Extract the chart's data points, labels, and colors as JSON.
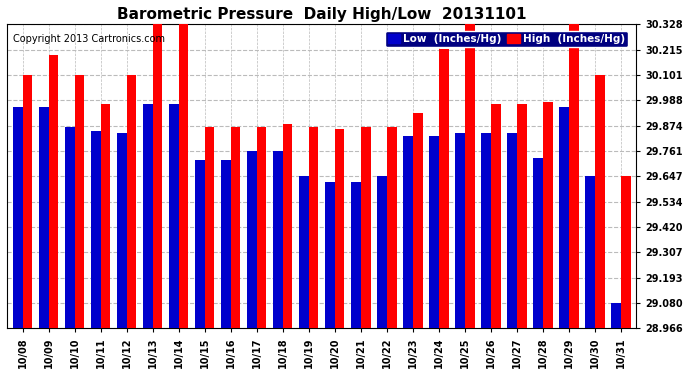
{
  "title": "Barometric Pressure  Daily High/Low  20131101",
  "copyright": "Copyright 2013 Cartronics.com",
  "legend_low": "Low  (Inches/Hg)",
  "legend_high": "High  (Inches/Hg)",
  "dates": [
    "10/08",
    "10/09",
    "10/10",
    "10/11",
    "10/12",
    "10/13",
    "10/14",
    "10/15",
    "10/16",
    "10/17",
    "10/18",
    "10/19",
    "10/20",
    "10/21",
    "10/22",
    "10/23",
    "10/24",
    "10/25",
    "10/26",
    "10/27",
    "10/28",
    "10/29",
    "10/30",
    "10/31"
  ],
  "low": [
    29.96,
    29.96,
    29.87,
    29.85,
    29.84,
    29.97,
    29.97,
    29.72,
    29.72,
    29.76,
    29.76,
    29.65,
    29.62,
    29.62,
    29.65,
    29.83,
    29.83,
    29.84,
    29.84,
    29.84,
    29.73,
    29.96,
    29.65,
    29.08
  ],
  "high": [
    30.1,
    30.19,
    30.1,
    29.97,
    30.1,
    30.33,
    30.33,
    29.87,
    29.87,
    29.87,
    29.88,
    29.87,
    29.86,
    29.87,
    29.87,
    29.93,
    30.22,
    30.33,
    29.97,
    29.97,
    29.98,
    30.33,
    30.1,
    29.65
  ],
  "ylim_min": 28.966,
  "ylim_max": 30.328,
  "yticks": [
    28.966,
    29.08,
    29.193,
    29.307,
    29.42,
    29.534,
    29.647,
    29.761,
    29.874,
    29.988,
    30.101,
    30.215,
    30.328
  ],
  "bg_color": "#ffffff",
  "plot_bg_color": "#ffffff",
  "bar_width": 0.38,
  "low_color": "#0000cc",
  "high_color": "#ff0000",
  "grid_color": "#bbbbbb",
  "title_fontsize": 11,
  "tick_fontsize": 7,
  "legend_fontsize": 7.5,
  "copyright_fontsize": 7
}
